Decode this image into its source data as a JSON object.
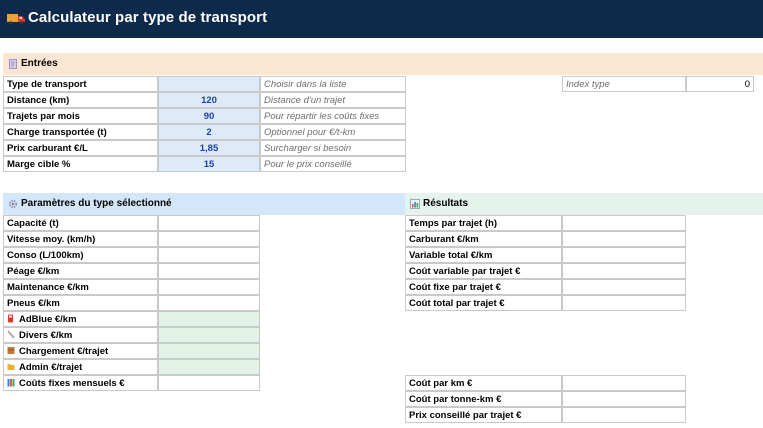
{
  "header": {
    "title": "Calculateur par type de transport"
  },
  "inputs": {
    "title": "Entrées",
    "rows": [
      {
        "label": "Type de transport",
        "value": "",
        "hint": "Choisir dans la liste"
      },
      {
        "label": "Distance (km)",
        "value": "120",
        "hint": "Distance d'un trajet"
      },
      {
        "label": "Trajets par mois",
        "value": "90",
        "hint": "Pour répartir les coûts fixes"
      },
      {
        "label": "Charge transportée (t)",
        "value": "2",
        "hint": "Optionnel pour €/t-km"
      },
      {
        "label": "Prix carburant €/L",
        "value": "1,85",
        "hint": "Surcharger si besoin"
      },
      {
        "label": "Marge cible %",
        "value": "15",
        "hint": "Pour le prix conseillé"
      }
    ],
    "index_label": "Index type",
    "index_value": "0"
  },
  "params": {
    "title": "Paramètres du type sélectionné",
    "rows": [
      {
        "label": "Capacité (t)"
      },
      {
        "label": "Vitesse moy. (km/h)"
      },
      {
        "label": "Conso (L/100km)"
      },
      {
        "label": "Péage €/km"
      },
      {
        "label": "Maintenance €/km"
      },
      {
        "label": "Pneus €/km"
      },
      {
        "label": "AdBlue €/km",
        "icon": "fuel-pump-icon"
      },
      {
        "label": "Divers €/km",
        "icon": "wrench-icon"
      },
      {
        "label": "Chargement €/trajet",
        "icon": "package-icon"
      },
      {
        "label": "Admin €/trajet",
        "icon": "folder-icon"
      },
      {
        "label": "Coûts fixes mensuels €",
        "icon": "books-icon"
      }
    ]
  },
  "results": {
    "title": "Résultats",
    "rows": [
      {
        "label": "Temps par trajet (h)"
      },
      {
        "label": "Carburant €/km"
      },
      {
        "label": "Variable total €/km"
      },
      {
        "label": "Coût variable par trajet €"
      },
      {
        "label": "Coût fixe par trajet €"
      },
      {
        "label": "Coût total par trajet €"
      }
    ],
    "rows2": [
      {
        "label": "Coût par km €"
      },
      {
        "label": "Coût par tonne-km €"
      },
      {
        "label": "Prix conseillé par trajet €"
      }
    ]
  }
}
